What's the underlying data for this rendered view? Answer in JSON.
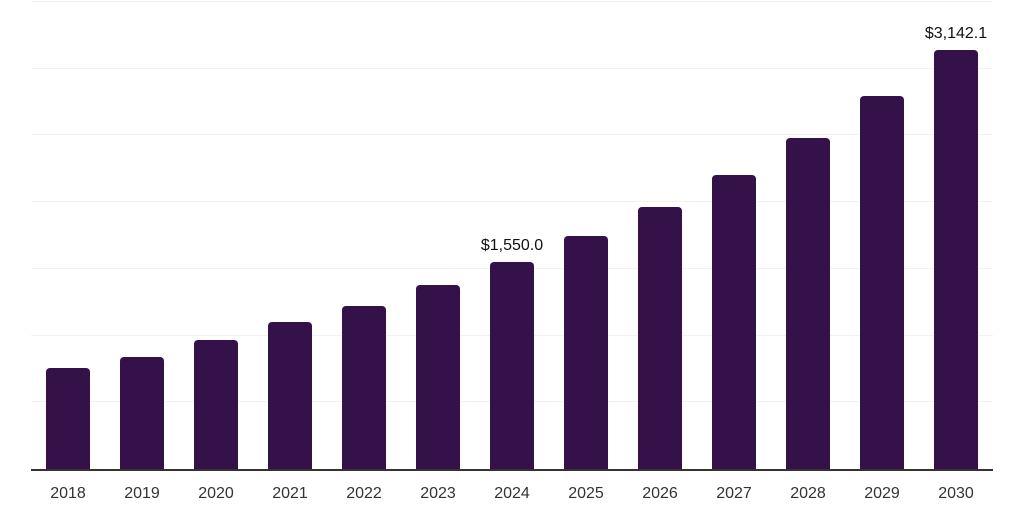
{
  "chart_data": {
    "type": "bar",
    "title": "",
    "xlabel": "",
    "ylabel": "",
    "categories": [
      "2018",
      "2019",
      "2020",
      "2021",
      "2022",
      "2023",
      "2024",
      "2025",
      "2026",
      "2027",
      "2028",
      "2029",
      "2030"
    ],
    "values": [
      757,
      839,
      967,
      1102,
      1222,
      1379,
      1550.0,
      1744,
      1962,
      2207,
      2483,
      2793,
      3142.1
    ],
    "data_labels": [
      {
        "index": 6,
        "text": "$1,550.0"
      },
      {
        "index": 12,
        "text": "$3,142.1"
      }
    ],
    "ylim": [
      0,
      3500
    ],
    "gridline_step": 500,
    "grid": "horizontal",
    "legend": "none",
    "colors": {
      "bar": "#341149",
      "gridline": "#f2f2f2",
      "axis_line": "#333333",
      "tick_label": "#333333",
      "data_label": "#111111"
    }
  }
}
